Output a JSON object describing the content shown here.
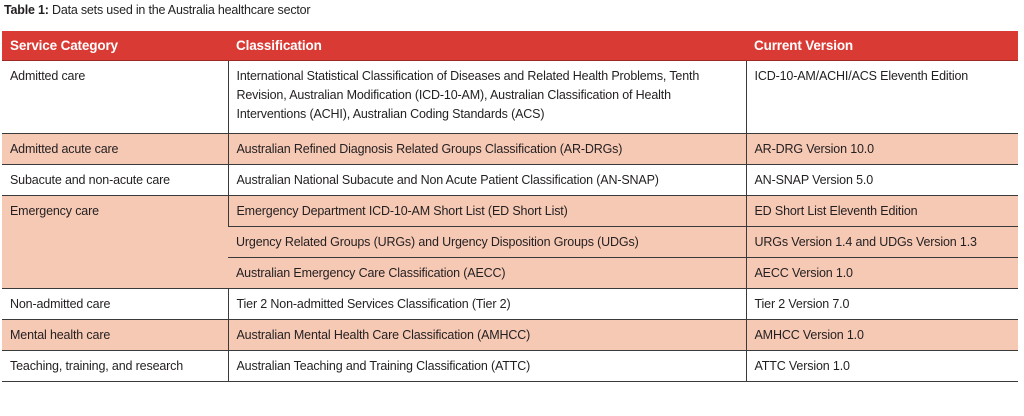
{
  "caption": {
    "label": "Table 1:",
    "text": " Data sets used in the Australia healthcare sector"
  },
  "table": {
    "headers": [
      "Service Category",
      "Classification",
      "Current Version"
    ],
    "header_color": "#d93a34",
    "shade_color": "#f6c9b5",
    "rows": [
      {
        "category": "Admitted care",
        "classification": "International Statistical Classification of Diseases and Related Health Problems, Tenth Revision, Australian Modification (ICD-10-AM), Australian Classification of Health Interventions (ACHI), Australian Coding Standards (ACS)",
        "version": "ICD-10-AM/ACHI/ACS Eleventh Edition"
      },
      {
        "category": "Admitted acute care",
        "classification": "Australian Refined Diagnosis Related Groups Classification (AR-DRGs)",
        "version": "AR-DRG Version 10.0"
      },
      {
        "category": "Subacute and non-acute care",
        "classification": "Australian National Subacute and Non Acute Patient Classification (AN-SNAP)",
        "version": "AN-SNAP Version 5.0"
      },
      {
        "category": "Emergency care",
        "classification": "Emergency Department ICD-10-AM Short List (ED Short List)",
        "version": "ED Short List Eleventh Edition"
      },
      {
        "category": "",
        "classification": "Urgency Related Groups (URGs) and Urgency Disposition Groups (UDGs)",
        "version": "URGs Version 1.4 and UDGs Version 1.3"
      },
      {
        "category": "",
        "classification": "Australian Emergency Care Classification (AECC)",
        "version": "AECC Version 1.0"
      },
      {
        "category": "Non-admitted care",
        "classification": "Tier 2 Non-admitted Services Classification (Tier 2)",
        "version": "Tier 2 Version 7.0"
      },
      {
        "category": "Mental health care",
        "classification": "Australian Mental Health Care Classification (AMHCC)",
        "version": "AMHCC Version 1.0"
      },
      {
        "category": "Teaching, training, and research",
        "classification": "Australian Teaching and Training Classification (ATTC)",
        "version": "ATTC Version 1.0"
      }
    ]
  }
}
